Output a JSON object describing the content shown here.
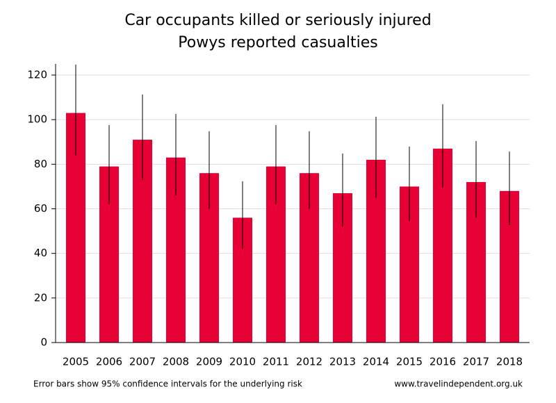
{
  "chart_data": {
    "type": "bar",
    "title": "Car occupants killed or seriously injured",
    "subtitle": "Powys reported casualties",
    "categories": [
      "2005",
      "2006",
      "2007",
      "2008",
      "2009",
      "2010",
      "2011",
      "2012",
      "2013",
      "2014",
      "2015",
      "2016",
      "2017",
      "2018"
    ],
    "values": [
      103,
      79,
      91,
      83,
      76,
      56,
      79,
      76,
      67,
      82,
      70,
      87,
      72,
      68
    ],
    "lower": [
      84,
      62,
      73,
      66,
      60,
      42,
      62,
      60,
      52,
      65,
      54.5,
      69.5,
      56,
      52.7
    ],
    "upper": [
      124.7,
      97.6,
      111.3,
      102.6,
      94.8,
      72.3,
      97.6,
      94.8,
      84.8,
      101.3,
      87.9,
      106.9,
      90.4,
      85.7
    ],
    "color": "#e60033",
    "ylim": [
      0,
      125
    ],
    "yticks": [
      0,
      20,
      40,
      60,
      80,
      100,
      120
    ],
    "grid": true,
    "note": "Error bars show 95% confidence intervals for the underlying risk",
    "source": "www.travelindependent.org.uk"
  }
}
